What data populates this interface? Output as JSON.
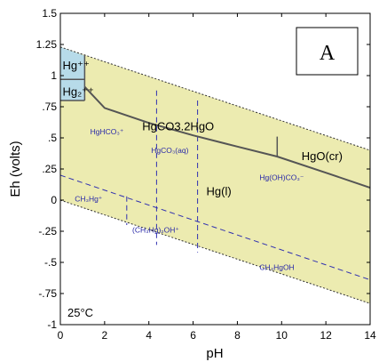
{
  "chart_data": {
    "type": "area",
    "title": "",
    "xlabel": "pH",
    "ylabel": "Eh (volts)",
    "xlim": [
      0,
      14
    ],
    "ylim": [
      -1,
      1.5
    ],
    "xticks": [
      0,
      2,
      4,
      6,
      8,
      10,
      12,
      14
    ],
    "yticks": [
      -1,
      -0.75,
      -0.5,
      -0.25,
      0,
      0.25,
      0.5,
      0.75,
      1,
      1.25,
      1.5
    ],
    "xtick_labels": [
      "0",
      "2",
      "4",
      "6",
      "8",
      "10",
      "12",
      "14"
    ],
    "ytick_labels": [
      "-1",
      "-.75",
      "-.5",
      "-.25",
      "0",
      ".25",
      ".5",
      ".75",
      "1",
      "1.25",
      "1.5"
    ],
    "grid": false,
    "panel_label": "A",
    "temperature_label": "25°C",
    "colors": {
      "stability_field": "#ecebb0",
      "aqueous_ion_field": "#b7dbe9",
      "boundary_line": "#555555",
      "water_line": "#333333",
      "predominance_line": "#3030b0"
    },
    "water_limits": {
      "upper": [
        [
          0,
          1.23
        ],
        [
          14,
          0.4
        ]
      ],
      "lower": [
        [
          0,
          0.0
        ],
        [
          14,
          -0.83
        ]
      ]
    },
    "solid_boundary": [
      [
        1.1,
        0.91
      ],
      [
        2.0,
        0.74
      ],
      [
        4.0,
        0.62
      ],
      [
        6.0,
        0.52
      ],
      [
        8.0,
        0.43
      ],
      [
        9.8,
        0.35
      ],
      [
        12.0,
        0.22
      ],
      [
        14.0,
        0.1
      ]
    ],
    "solid_boundary_segments": [
      [
        [
          9.8,
          0.35
        ],
        [
          9.8,
          0.51
        ]
      ],
      [
        [
          1.1,
          0.8
        ],
        [
          1.1,
          1.17
        ]
      ],
      [
        [
          0,
          0.8
        ],
        [
          1.1,
          0.8
        ]
      ],
      [
        [
          0,
          0.97
        ],
        [
          1.1,
          0.97
        ]
      ]
    ],
    "aqueous_ion_regions": [
      [
        [
          0,
          1.23
        ],
        [
          1.1,
          1.16
        ],
        [
          1.1,
          0.8
        ],
        [
          0,
          0.8
        ]
      ]
    ],
    "predominance_lines": [
      [
        [
          4.35,
          0.88
        ],
        [
          4.35,
          -0.36
        ]
      ],
      [
        [
          6.2,
          0.8
        ],
        [
          6.2,
          -0.42
        ]
      ],
      [
        [
          0,
          0.2
        ],
        [
          14,
          -0.64
        ]
      ],
      [
        [
          3.0,
          0.03
        ],
        [
          3.0,
          -0.2
        ]
      ]
    ],
    "fields": [
      {
        "label": "Hg⁺⁺",
        "pH": 0.1,
        "Eh": 1.05,
        "style": "big"
      },
      {
        "label": "Hg₂⁺⁺",
        "pH": 0.1,
        "Eh": 0.84,
        "style": "big"
      },
      {
        "label": "HgCO3.2HgO",
        "pH": 3.7,
        "Eh": 0.56,
        "style": "big"
      },
      {
        "label": "HgO(cr)",
        "pH": 10.9,
        "Eh": 0.32,
        "style": "big"
      },
      {
        "label": "Hg(l)",
        "pH": 6.6,
        "Eh": 0.04,
        "style": "big"
      },
      {
        "label": "HgHCO₃⁺",
        "pH": 1.35,
        "Eh": 0.53,
        "style": "small"
      },
      {
        "label": "HgCO₃(aq)",
        "pH": 4.1,
        "Eh": 0.38,
        "style": "small"
      },
      {
        "label": "Hg(OH)CO₃⁻",
        "pH": 9.0,
        "Eh": 0.16,
        "style": "small"
      },
      {
        "label": "CH₃Hg⁺",
        "pH": 0.65,
        "Eh": -0.01,
        "style": "small"
      },
      {
        "label": "(CH₃Hg)₂OH⁺",
        "pH": 3.25,
        "Eh": -0.26,
        "style": "small"
      },
      {
        "label": "CH₃HgOH",
        "pH": 9.0,
        "Eh": -0.56,
        "style": "small"
      }
    ]
  }
}
